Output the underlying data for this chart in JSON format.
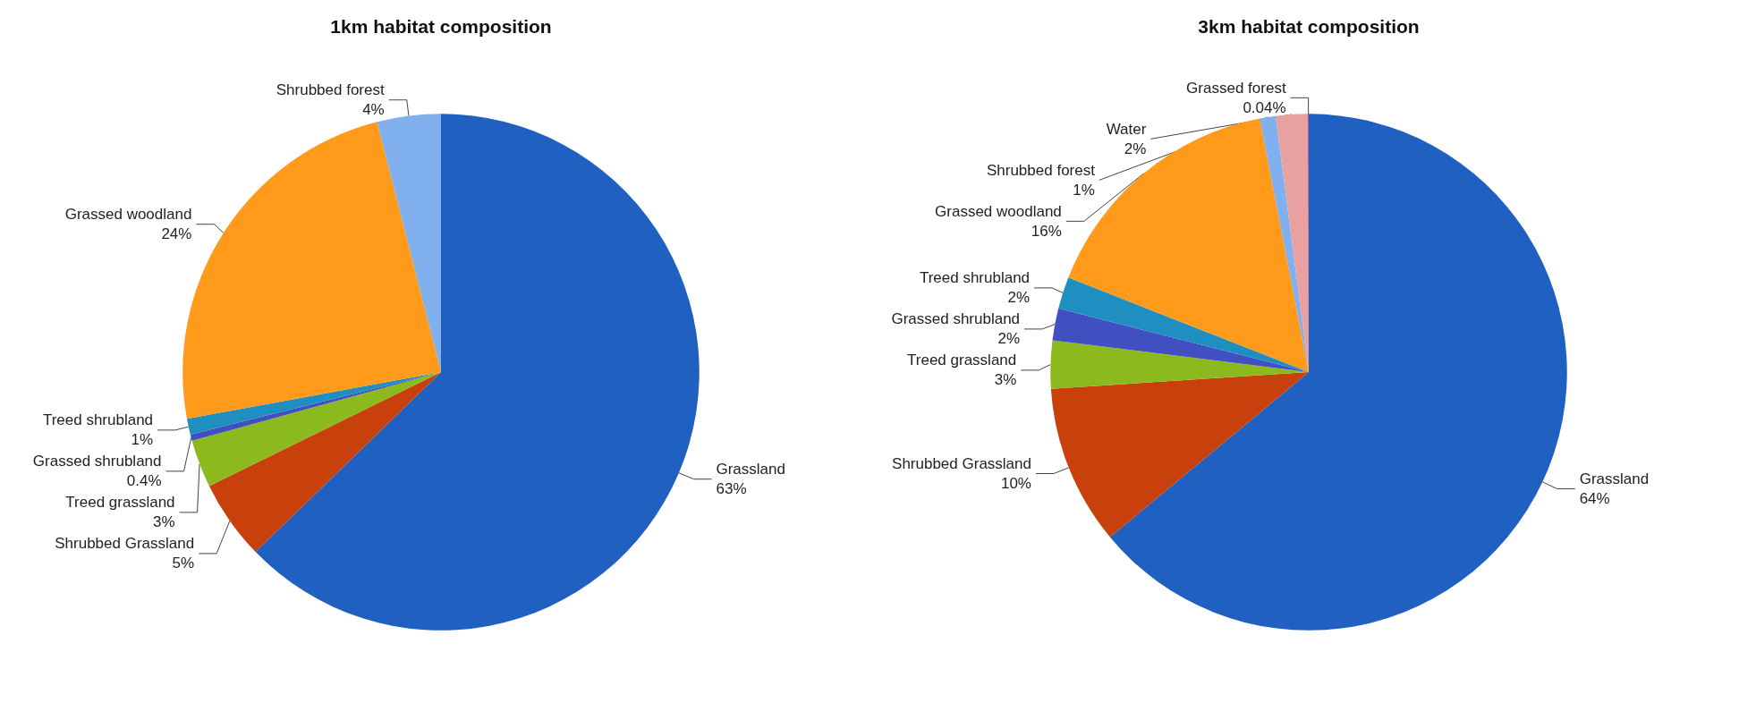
{
  "chart_data": [
    {
      "type": "pie",
      "title": "1km habitat composition",
      "categories": [
        "Grassland",
        "Shrubbed Grassland",
        "Treed grassland",
        "Grassed shrubland",
        "Treed shrubland",
        "Grassed woodland",
        "Shrubbed forest"
      ],
      "values": [
        63,
        5,
        3,
        0.4,
        1,
        24,
        4
      ],
      "value_labels": [
        "63%",
        "5%",
        "3%",
        "0.4%",
        "1%",
        "24%",
        "4%"
      ],
      "colors": [
        "#2060c0",
        "#c8400c",
        "#8cba1e",
        "#4050c0",
        "#1e8fc0",
        "#ff9a1a",
        "#80b0ee"
      ]
    },
    {
      "type": "pie",
      "title": "3km habitat composition",
      "categories": [
        "Grassland",
        "Shrubbed Grassland",
        "Treed grassland",
        "Grassed shrubland",
        "Treed shrubland",
        "Grassed woodland",
        "Shrubbed forest",
        "Water",
        "Grassed forest"
      ],
      "values": [
        64,
        10,
        3,
        2,
        2,
        16,
        1,
        2,
        0.04
      ],
      "value_labels": [
        "64%",
        "10%",
        "3%",
        "2%",
        "2%",
        "16%",
        "1%",
        "2%",
        "0.04%"
      ],
      "colors": [
        "#2060c0",
        "#c8400c",
        "#8cba1e",
        "#4050c0",
        "#1e8fc0",
        "#ff9a1a",
        "#80b0ee",
        "#e8a0a0",
        "#6a2a8a"
      ]
    }
  ]
}
